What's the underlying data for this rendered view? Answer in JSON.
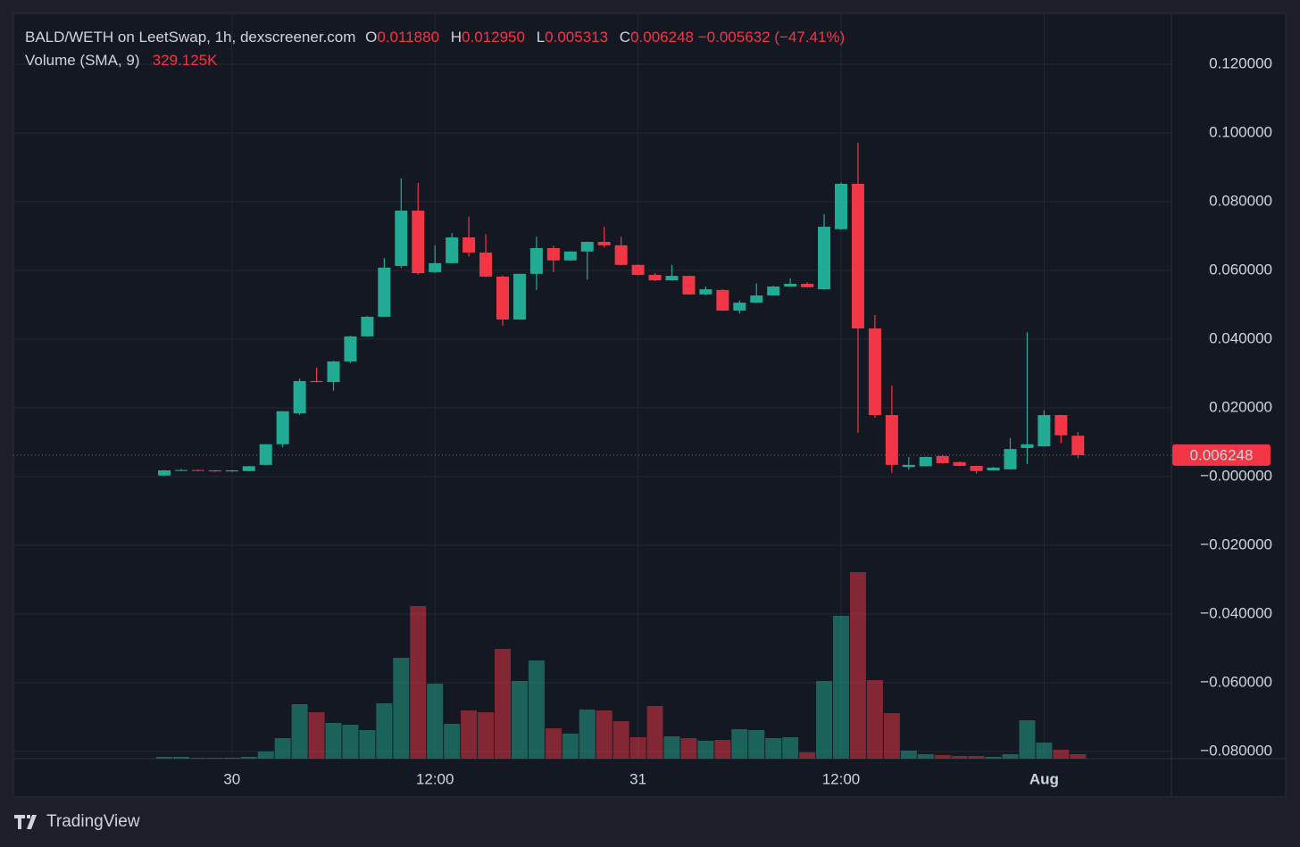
{
  "chart_data": {
    "type": "candlestick",
    "title": "BALD/WETH on LeetSwap, 1h, dexscreener.com",
    "ohlc_legend": [
      {
        "label": "O",
        "value": "0.011880"
      },
      {
        "label": "H",
        "value": "0.012950"
      },
      {
        "label": "L",
        "value": "0.005313"
      },
      {
        "label": "C",
        "value": "0.006248"
      }
    ],
    "change": "−0.005632 (−47.41%)",
    "volume_label": "Volume (SMA, 9)",
    "volume_sma": "329.125K",
    "categories": [
      null,
      null,
      null,
      null,
      "30",
      null,
      null,
      null,
      null,
      null,
      null,
      null,
      null,
      null,
      null,
      null,
      "12:00",
      null,
      null,
      null,
      null,
      null,
      null,
      null,
      null,
      null,
      null,
      null,
      "31",
      null,
      null,
      null,
      null,
      null,
      null,
      null,
      null,
      null,
      null,
      null,
      "12:00",
      null,
      null,
      null,
      null,
      null,
      null,
      null,
      null,
      null,
      null,
      null,
      "Aug",
      null,
      null
    ],
    "open": [
      0.0003,
      0.0018,
      0.0019,
      0.0018,
      0.0015,
      0.0016,
      0.0034,
      0.0094,
      0.0184,
      0.0278,
      0.0275,
      0.0335,
      0.0408,
      0.0465,
      0.0613,
      0.0774,
      0.0595,
      0.0621,
      0.0696,
      0.0652,
      0.0582,
      0.0457,
      0.059,
      0.0665,
      0.0629,
      0.0655,
      0.0683,
      0.0673,
      0.0616,
      0.0587,
      0.0571,
      0.0584,
      0.053,
      0.0543,
      0.0483,
      0.0506,
      0.0527,
      0.0553,
      0.0561,
      0.0545,
      0.072,
      0.0852,
      0.0431,
      0.0179,
      0.0028,
      0.003,
      0.006,
      0.0042,
      0.0031,
      0.0018,
      0.0021,
      0.0083,
      0.0088,
      0.0179,
      0.01188
    ],
    "high": [
      0.0019,
      0.0022,
      0.002,
      0.0019,
      0.0019,
      0.0031,
      0.0095,
      0.0191,
      0.0285,
      0.0317,
      0.0337,
      0.041,
      0.0467,
      0.0636,
      0.0868,
      0.0855,
      0.0673,
      0.0708,
      0.0756,
      0.0705,
      0.0585,
      0.059,
      0.0698,
      0.0672,
      0.0656,
      0.0684,
      0.0727,
      0.0698,
      0.0617,
      0.0592,
      0.0616,
      0.0585,
      0.0553,
      0.0545,
      0.0512,
      0.0562,
      0.0555,
      0.0577,
      0.0565,
      0.0764,
      0.0855,
      0.0971,
      0.047,
      0.0265,
      0.0057,
      0.0058,
      0.0063,
      0.0044,
      0.0032,
      0.0028,
      0.0112,
      0.042,
      0.0193,
      0.018,
      0.01295
    ],
    "low": [
      0.0001,
      0.0016,
      0.0016,
      0.0014,
      0.0014,
      0.0015,
      0.0033,
      0.0086,
      0.0179,
      0.0274,
      0.025,
      0.033,
      0.0407,
      0.0464,
      0.0607,
      0.0588,
      0.0593,
      0.062,
      0.064,
      0.058,
      0.0439,
      0.0456,
      0.0543,
      0.0595,
      0.0628,
      0.0573,
      0.0667,
      0.0615,
      0.0585,
      0.0569,
      0.057,
      0.0529,
      0.0528,
      0.0482,
      0.0475,
      0.0505,
      0.0526,
      0.0552,
      0.055,
      0.0544,
      0.0718,
      0.0127,
      0.0171,
      0.001,
      0.002,
      0.0029,
      0.0038,
      0.003,
      0.0008,
      0.0017,
      0.002,
      0.0036,
      0.0087,
      0.0097,
      0.005313
    ],
    "close": [
      0.0018,
      0.0019,
      0.0018,
      0.0015,
      0.0018,
      0.003,
      0.0094,
      0.019,
      0.0278,
      0.0275,
      0.0335,
      0.0408,
      0.0465,
      0.0608,
      0.0774,
      0.0592,
      0.0621,
      0.0696,
      0.0652,
      0.0582,
      0.0457,
      0.059,
      0.0665,
      0.0629,
      0.0655,
      0.0683,
      0.0673,
      0.0616,
      0.0587,
      0.0571,
      0.0584,
      0.053,
      0.0545,
      0.0483,
      0.0506,
      0.0527,
      0.0553,
      0.0561,
      0.0551,
      0.0727,
      0.0852,
      0.0431,
      0.0179,
      0.0034,
      0.0034,
      0.0057,
      0.0039,
      0.0031,
      0.0016,
      0.0026,
      0.008,
      0.0094,
      0.0179,
      0.012,
      0.006248
    ],
    "volume": [
      60000,
      60000,
      30000,
      30000,
      30000,
      60000,
      240000,
      690000,
      1830000,
      1560000,
      1200000,
      1140000,
      960000,
      1860000,
      3390000,
      5130000,
      2520000,
      1170000,
      1620000,
      1560000,
      3690000,
      2610000,
      3300000,
      1020000,
      840000,
      1650000,
      1620000,
      1260000,
      720000,
      1770000,
      750000,
      690000,
      600000,
      630000,
      990000,
      960000,
      690000,
      720000,
      210000,
      2610000,
      4800000,
      6270000,
      2640000,
      1530000,
      270000,
      150000,
      120000,
      90000,
      90000,
      60000,
      150000,
      1290000,
      540000,
      300000,
      150000
    ],
    "ylim": [
      -0.0821,
      0.1348
    ],
    "yticks": [
      {
        "value": 0.12,
        "label": "0.120000"
      },
      {
        "value": 0.1,
        "label": "0.100000"
      },
      {
        "value": 0.08,
        "label": "0.080000"
      },
      {
        "value": 0.06,
        "label": "0.060000"
      },
      {
        "value": 0.04,
        "label": "0.040000"
      },
      {
        "value": 0.02,
        "label": "0.020000"
      },
      {
        "value": 0,
        "label": "−0.000000"
      },
      {
        "value": -0.02,
        "label": "−0.020000"
      },
      {
        "value": -0.04,
        "label": "−0.040000"
      },
      {
        "value": -0.06,
        "label": "−0.060000"
      },
      {
        "value": -0.08,
        "label": "−0.080000"
      }
    ],
    "up_color": "#22ab94",
    "down_color": "#f23645",
    "grid": true
  },
  "branding": "TradingView"
}
